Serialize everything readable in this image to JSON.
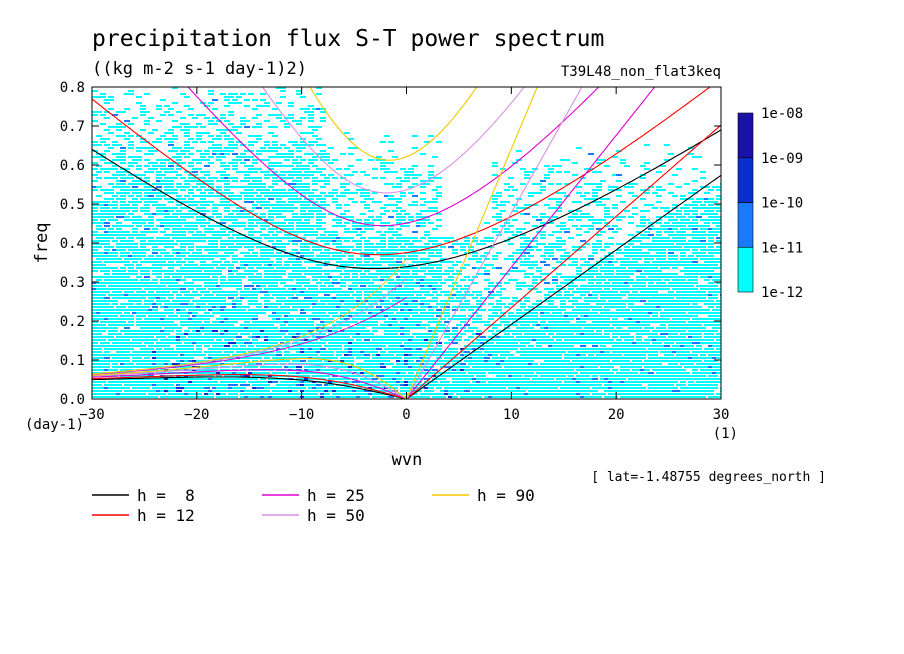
{
  "chart_data": {
    "type": "heatmap",
    "title": "precipitation flux S-T power spectrum",
    "units": "((kg m-2 s-1 day-1)2)",
    "experiment": "T39L48_non_flat3keq",
    "xlabel": "wvn",
    "ylabel": "freq",
    "x_unit": "(1)",
    "y_unit": "(day-1)",
    "xlim": [
      -30,
      30
    ],
    "ylim": [
      0,
      0.8
    ],
    "xticks": [
      -30,
      -20,
      -10,
      0,
      10,
      20,
      30
    ],
    "yticks": [
      0.0,
      0.1,
      0.2,
      0.3,
      0.4,
      0.5,
      0.6,
      0.7,
      0.8
    ],
    "colorbar": {
      "levels": [
        "1e-12",
        "1e-11",
        "1e-10",
        "1e-09",
        "1e-08"
      ],
      "colors": [
        "#00ffff",
        "#1a7aff",
        "#0a2ed0",
        "#1a12a8",
        "#5a1cb8"
      ]
    },
    "dispersion_curves": [
      {
        "name": "h =  8",
        "h": 8,
        "color": "#000000"
      },
      {
        "name": "h = 12",
        "h": 12,
        "color": "#ff0000"
      },
      {
        "name": "h = 25",
        "h": 25,
        "color": "#e000d0"
      },
      {
        "name": "h = 50",
        "h": 50,
        "color": "#d890e8"
      },
      {
        "name": "h = 90",
        "h": 90,
        "color": "#f0c800"
      }
    ],
    "annotation": "[ lat=-1.48755 degrees_north ]"
  }
}
